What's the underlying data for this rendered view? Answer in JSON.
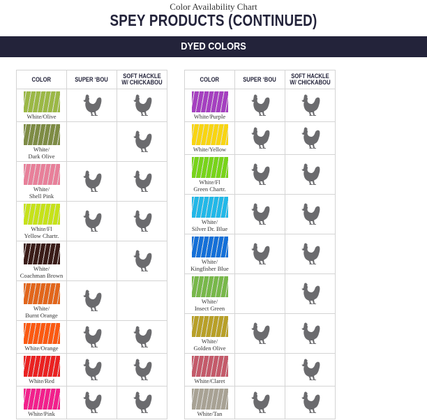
{
  "header": {
    "subtitle": "Color Availability Chart",
    "title": "SPEY PRODUCTS (CONTINUED)",
    "banner": "DYED COLORS"
  },
  "columns": [
    "COLOR",
    "SUPER ‘BOU",
    "SOFT HACKLE W/ CHICKABOU"
  ],
  "icon": "rooster-icon",
  "left": [
    {
      "name": "White/Olive",
      "color": "#9bb846",
      "super_bou": true,
      "soft_hackle": true,
      "lines": 1
    },
    {
      "name": "White/ Dark Olive",
      "color": "#7e8c45",
      "super_bou": false,
      "soft_hackle": true,
      "lines": 2
    },
    {
      "name": "White/ Shell Pink",
      "color": "#e8809a",
      "super_bou": true,
      "soft_hackle": true,
      "lines": 2
    },
    {
      "name": "White/Fl Yellow Chartr.",
      "color": "#c6e21a",
      "super_bou": true,
      "soft_hackle": true,
      "lines": 2
    },
    {
      "name": "White/ Coachman Brown",
      "color": "#3a1c18",
      "super_bou": false,
      "soft_hackle": true,
      "lines": 2
    },
    {
      "name": "White/ Burnt Orange",
      "color": "#e2661c",
      "super_bou": true,
      "soft_hackle": false,
      "lines": 2
    },
    {
      "name": "White/Orange",
      "color": "#fb5a12",
      "super_bou": true,
      "soft_hackle": true,
      "lines": 1
    },
    {
      "name": "White/Red",
      "color": "#ea2222",
      "super_bou": true,
      "soft_hackle": true,
      "lines": 1
    },
    {
      "name": "White/Pink",
      "color": "#f2208c",
      "super_bou": true,
      "soft_hackle": true,
      "lines": 1
    }
  ],
  "right": [
    {
      "name": "White/Purple",
      "color": "#a540c0",
      "super_bou": true,
      "soft_hackle": true,
      "lines": 1
    },
    {
      "name": "White/Yellow",
      "color": "#f8d512",
      "super_bou": true,
      "soft_hackle": true,
      "lines": 1
    },
    {
      "name": "White/Fl Green Chartr.",
      "color": "#78d41a",
      "super_bou": true,
      "soft_hackle": true,
      "lines": 2
    },
    {
      "name": "White/ Silver Dr. Blue",
      "color": "#22b8e8",
      "super_bou": true,
      "soft_hackle": true,
      "lines": 2
    },
    {
      "name": "White/ Kingfisher Blue",
      "color": "#1470d8",
      "super_bou": true,
      "soft_hackle": true,
      "lines": 2
    },
    {
      "name": "White/ Insect Green",
      "color": "#78b84a",
      "super_bou": false,
      "soft_hackle": true,
      "lines": 2
    },
    {
      "name": "White/ Golden Olive",
      "color": "#b8a028",
      "super_bou": true,
      "soft_hackle": true,
      "lines": 2
    },
    {
      "name": "White/Claret",
      "color": "#c45a6a",
      "super_bou": false,
      "soft_hackle": true,
      "lines": 1
    },
    {
      "name": "White/Tan",
      "color": "#a8a294",
      "super_bou": true,
      "soft_hackle": true,
      "lines": 1
    }
  ]
}
